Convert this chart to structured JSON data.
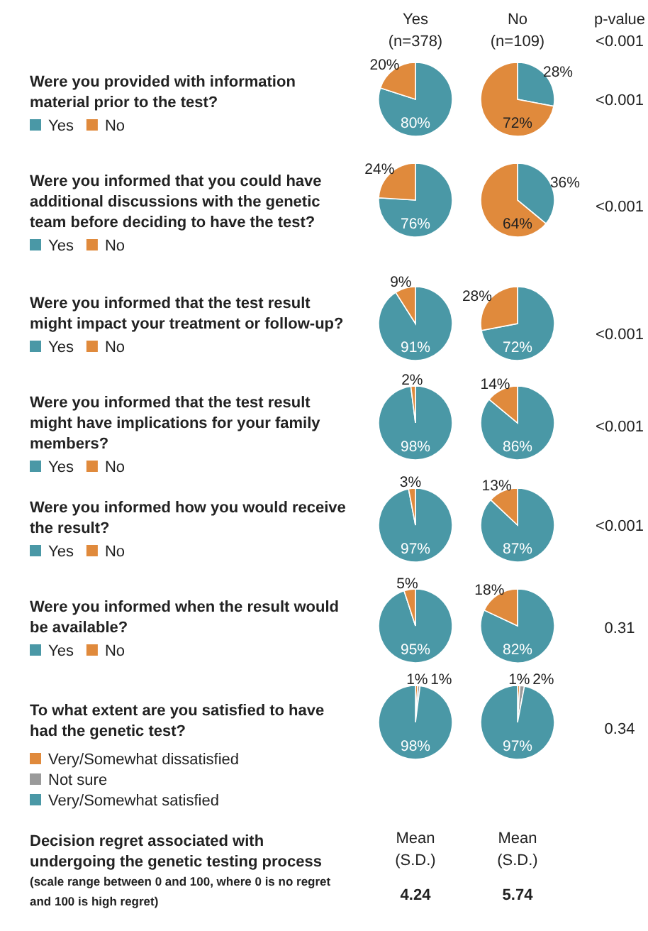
{
  "chart_data": [
    {
      "type": "other",
      "annotations": [
        "Yes\n(n=378)",
        "No\n(n=109)",
        "p-value\n<0.001"
      ]
    },
    {
      "type": "pie",
      "title": "Were you provided with information material prior to the test?",
      "categories": [
        "Yes",
        "No"
      ],
      "colors": [
        "#4a98a6",
        "#e08a3c"
      ],
      "legend": "left",
      "annotations": [
        "<0.001"
      ],
      "series": [
        {
          "values": [
            80,
            20
          ],
          "value_labels": [
            "80%",
            "20%"
          ]
        },
        {
          "values": [
            28,
            72
          ],
          "value_labels": [
            "28%",
            "72%"
          ]
        }
      ]
    },
    {
      "type": "pie",
      "title": "Were you informed that you could have additional discussions with the genetic team before deciding to have the test?",
      "categories": [
        "Yes",
        "No"
      ],
      "colors": [
        "#4a98a6",
        "#e08a3c"
      ],
      "legend": "left",
      "annotations": [
        "<0.001"
      ],
      "series": [
        {
          "values": [
            76,
            24
          ],
          "value_labels": [
            "76%",
            "24%"
          ]
        },
        {
          "values": [
            36,
            64
          ],
          "value_labels": [
            "36%",
            "64%"
          ]
        }
      ]
    },
    {
      "type": "pie",
      "title": "Were you informed that the test result might impact your treatment or follow-up?",
      "categories": [
        "Yes",
        "No"
      ],
      "colors": [
        "#4a98a6",
        "#e08a3c"
      ],
      "legend": "left",
      "annotations": [
        "<0.001"
      ],
      "series": [
        {
          "values": [
            91,
            9
          ],
          "value_labels": [
            "91%",
            "9%"
          ]
        },
        {
          "values": [
            72,
            28
          ],
          "value_labels": [
            "72%",
            "28%"
          ]
        }
      ]
    },
    {
      "type": "pie",
      "title": "Were you informed that the test result might have implications for your family members?",
      "categories": [
        "Yes",
        "No"
      ],
      "colors": [
        "#4a98a6",
        "#e08a3c"
      ],
      "legend": "left",
      "annotations": [
        "<0.001"
      ],
      "series": [
        {
          "values": [
            98,
            2
          ],
          "value_labels": [
            "98%",
            "2%"
          ]
        },
        {
          "values": [
            86,
            14
          ],
          "value_labels": [
            "86%",
            "14%"
          ]
        }
      ]
    },
    {
      "type": "pie",
      "title": "Were you informed how you would receive the result?",
      "categories": [
        "Yes",
        "No"
      ],
      "colors": [
        "#4a98a6",
        "#e08a3c"
      ],
      "legend": "left",
      "annotations": [
        "<0.001"
      ],
      "series": [
        {
          "values": [
            97,
            3
          ],
          "value_labels": [
            "97%",
            "3%"
          ]
        },
        {
          "values": [
            87,
            13
          ],
          "value_labels": [
            "87%",
            "13%"
          ]
        }
      ]
    },
    {
      "type": "pie",
      "title": "Were you informed when the result would be available?",
      "categories": [
        "Yes",
        "No"
      ],
      "colors": [
        "#4a98a6",
        "#e08a3c"
      ],
      "legend": "left",
      "annotations": [
        "0.31"
      ],
      "series": [
        {
          "values": [
            95,
            5
          ],
          "value_labels": [
            "95%",
            "5%"
          ]
        },
        {
          "values": [
            82,
            18
          ],
          "value_labels": [
            "82%",
            "18%"
          ]
        }
      ]
    },
    {
      "type": "pie",
      "title": "To what extent are you satisfied to have had the genetic test?",
      "categories": [
        "Very/Somewhat dissatisfied",
        "Not sure",
        "Very/Somewhat satisfied"
      ],
      "colors": [
        "#e08a3c",
        "#9a9a9a",
        "#4a98a6"
      ],
      "legend": "left",
      "annotations": [
        "0.34"
      ],
      "series": [
        {
          "values": [
            1,
            1,
            98
          ],
          "value_labels": [
            "1%",
            "1%",
            "98%"
          ]
        },
        {
          "values": [
            1,
            2,
            97
          ],
          "value_labels": [
            "1%",
            "2%",
            "97%"
          ]
        }
      ]
    },
    {
      "type": "other",
      "title": "Decision regret associated with undergoing the genetic testing process",
      "subtitle": "(scale range between 0 and 100, where 0 is no regret and 100 is high regret)",
      "annotations": [
        "Mean\n(S.D.)\n4.24",
        "Mean\n(S.D.)\n5.74"
      ]
    }
  ]
}
